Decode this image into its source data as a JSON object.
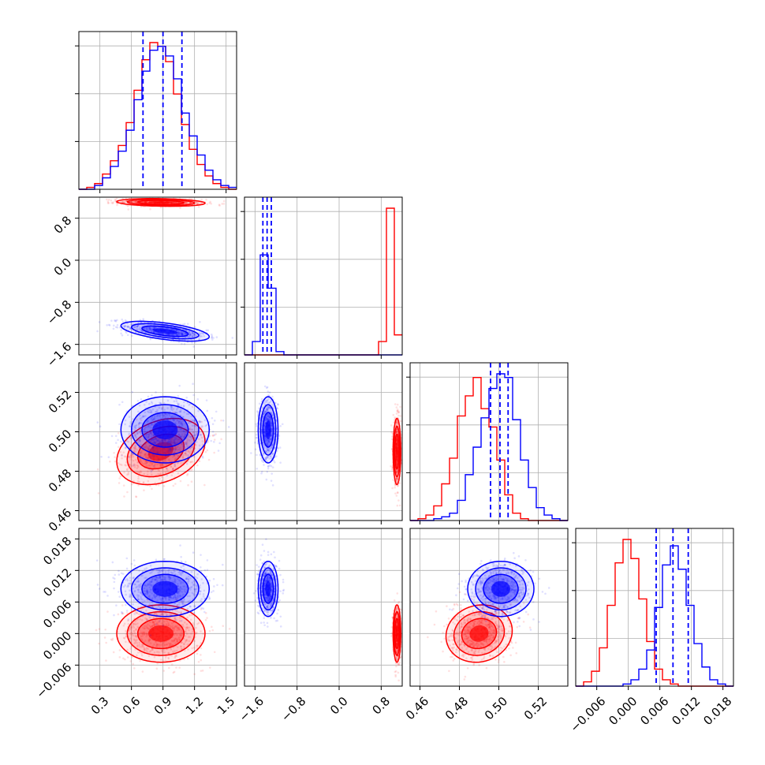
{
  "chart_data": {
    "type": "corner",
    "colors": {
      "series_a": "#ff0000",
      "series_b": "#0000ff"
    },
    "params": [
      {
        "ticks": [
          0.3,
          0.6,
          0.9,
          1.2,
          1.5
        ],
        "tick_labels": [
          "0.3",
          "0.6",
          "0.9",
          "1.2",
          "1.5"
        ],
        "range": [
          0.1,
          1.6
        ]
      },
      {
        "ticks": [
          -1.6,
          -0.8,
          0.0,
          0.8
        ],
        "tick_labels": [
          "−1.6",
          "−0.8",
          "0.0",
          "0.8"
        ],
        "range": [
          -1.8,
          1.2
        ]
      },
      {
        "ticks": [
          0.46,
          0.48,
          0.5,
          0.52
        ],
        "tick_labels": [
          "0.46",
          "0.48",
          "0.50",
          "0.52"
        ],
        "range": [
          0.455,
          0.535
        ]
      },
      {
        "ticks": [
          -0.006,
          0.0,
          0.006,
          0.012,
          0.018
        ],
        "tick_labels": [
          "−0.006",
          "0.000",
          "0.006",
          "0.012",
          "0.018"
        ],
        "range": [
          -0.01,
          0.02
        ]
      }
    ],
    "histograms": [
      {
        "edges_range": [
          0.1,
          1.6
        ],
        "series_a": [
          0,
          1,
          3,
          8,
          15,
          23,
          35,
          52,
          68,
          77,
          75,
          67,
          50,
          34,
          21,
          13,
          7,
          3,
          1,
          0
        ],
        "series_b": [
          0,
          0,
          2,
          6,
          12,
          20,
          31,
          47,
          62,
          73,
          75,
          70,
          58,
          40,
          28,
          18,
          10,
          5,
          2,
          1
        ],
        "quantiles": [
          0.71,
          0.9,
          1.08
        ]
      },
      {
        "edges_range": [
          -1.8,
          1.2
        ],
        "series_a": [
          0,
          0,
          0,
          0,
          0,
          0,
          0,
          0,
          0,
          0,
          0,
          0,
          0,
          0,
          0,
          0,
          0,
          0.08,
          0.88,
          0.12
        ],
        "series_b": [
          0,
          0.08,
          0.6,
          0.4,
          0.02,
          0,
          0,
          0,
          0,
          0,
          0,
          0,
          0,
          0,
          0,
          0,
          0,
          0,
          0,
          0
        ],
        "quantiles": [
          -1.45,
          -1.37,
          -1.29
        ]
      },
      {
        "edges_range": [
          0.455,
          0.535
        ],
        "series_a": [
          0,
          1,
          3,
          8,
          20,
          34,
          57,
          68,
          78,
          61,
          51,
          33,
          14,
          4,
          1,
          0,
          0,
          0,
          0,
          0
        ],
        "series_b": [
          0,
          0,
          0,
          1,
          2,
          4,
          11,
          25,
          40,
          56,
          72,
          80,
          78,
          55,
          33,
          18,
          7,
          3,
          1,
          0
        ],
        "quantiles": [
          0.4958,
          0.5006,
          0.5047
        ]
      },
      {
        "edges_range": [
          -0.01,
          0.02
        ],
        "series_a": [
          0,
          2,
          7,
          18,
          38,
          58,
          69,
          60,
          41,
          21,
          8,
          3,
          1,
          0,
          0,
          0,
          0,
          0,
          0,
          0
        ],
        "series_b": [
          0,
          0,
          0,
          0,
          0,
          0,
          1,
          3,
          8,
          17,
          37,
          57,
          66,
          55,
          38,
          20,
          9,
          3,
          1,
          0
        ],
        "quantiles": [
          0.0053,
          0.0085,
          0.0114
        ]
      }
    ],
    "clusters": {
      "series_a": {
        "mean": [
          0.88,
          1.1,
          0.49,
          0.0
        ],
        "sd": [
          0.2,
          0.035,
          0.008,
          0.0026
        ],
        "corr": [
          [
            1,
            -0.2
          ],
          [
            0,
            2
          ],
          [
            0,
            3
          ],
          [
            1,
            2
          ],
          [
            1,
            3
          ],
          [
            2,
            3
          ]
        ]
      },
      "series_b": {
        "mean": [
          0.92,
          -1.35,
          0.501,
          0.0085
        ],
        "sd": [
          0.2,
          0.09,
          0.008,
          0.0025
        ],
        "corr": [
          [
            0,
            1,
            -0.6
          ]
        ]
      }
    }
  }
}
